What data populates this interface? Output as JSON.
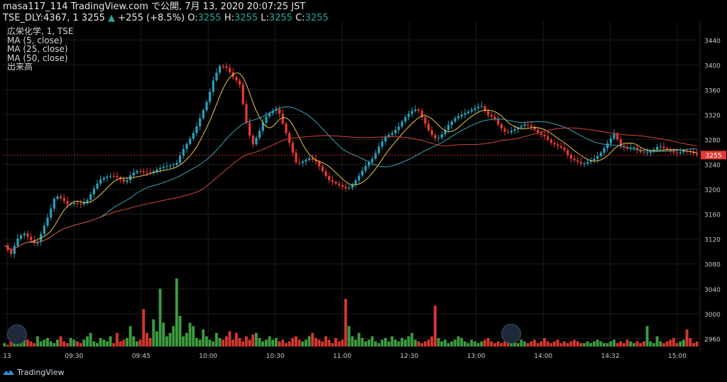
{
  "header": {
    "line1": "masa117_114 TradingView.com で公開, 7月 13, 2020 20:07:25 JST",
    "symbol": "TSE_DLY:4367, 1",
    "price": "3255",
    "change_arrow": "▲",
    "change": "+255 (+8.5%)",
    "o_label": "O:",
    "o_val": "3255",
    "h_label": "H:",
    "h_val": "3255",
    "l_label": "L:",
    "l_val": "3255",
    "c_label": "C:",
    "c_val": "3255"
  },
  "legend": {
    "title": "広栄化学, 1, TSE",
    "ma5": "MA (5, close)",
    "ma25": "MA (25, close)",
    "ma50": "MA (50, close)",
    "volume": "出来高"
  },
  "footer": {
    "brand": "TradingView"
  },
  "colors": {
    "up": "#26a0b8",
    "down": "#e53935",
    "vol_up": "#3d9b3f",
    "vol_down": "#d5372f",
    "ma5": "#e9c64b",
    "ma25": "#36a4b7",
    "ma50": "#d3443a",
    "grid": "#1c1c1c",
    "price_line": "#e53935",
    "axis_text": "#c8c8c8",
    "price_tag_bg": "#e53935"
  },
  "chart_data": {
    "type": "candlestick",
    "price_axis_ticks": [
      2960,
      3000,
      3040,
      3080,
      3120,
      3160,
      3200,
      3240,
      3280,
      3320,
      3360,
      3400,
      3440
    ],
    "ylim": [
      2945,
      3470
    ],
    "time_ticks": [
      "13",
      "09:30",
      "09:45",
      "10:00",
      "10:30",
      "11:00",
      "12:30",
      "13:00",
      "14:00",
      "14:32",
      "15:00"
    ],
    "current_price": 3255,
    "grid": true,
    "price_path": [
      [
        0,
        3110
      ],
      [
        2,
        3095
      ],
      [
        4,
        3120
      ],
      [
        6,
        3130
      ],
      [
        8,
        3120
      ],
      [
        10,
        3110
      ],
      [
        12,
        3135
      ],
      [
        14,
        3160
      ],
      [
        16,
        3190
      ],
      [
        18,
        3185
      ],
      [
        20,
        3175
      ],
      [
        22,
        3178
      ],
      [
        24,
        3176
      ],
      [
        26,
        3182
      ],
      [
        28,
        3200
      ],
      [
        30,
        3215
      ],
      [
        32,
        3220
      ],
      [
        34,
        3222
      ],
      [
        36,
        3218
      ],
      [
        38,
        3210
      ],
      [
        40,
        3225
      ],
      [
        42,
        3230
      ],
      [
        44,
        3228
      ],
      [
        46,
        3226
      ],
      [
        48,
        3232
      ],
      [
        50,
        3236
      ],
      [
        52,
        3238
      ],
      [
        54,
        3240
      ],
      [
        56,
        3262
      ],
      [
        58,
        3278
      ],
      [
        60,
        3295
      ],
      [
        62,
        3320
      ],
      [
        64,
        3345
      ],
      [
        66,
        3380
      ],
      [
        68,
        3400
      ],
      [
        70,
        3395
      ],
      [
        72,
        3380
      ],
      [
        74,
        3370
      ],
      [
        76,
        3310
      ],
      [
        78,
        3270
      ],
      [
        80,
        3290
      ],
      [
        82,
        3315
      ],
      [
        84,
        3325
      ],
      [
        86,
        3330
      ],
      [
        88,
        3300
      ],
      [
        90,
        3270
      ],
      [
        92,
        3240
      ],
      [
        94,
        3245
      ],
      [
        96,
        3250
      ],
      [
        98,
        3245
      ],
      [
        100,
        3230
      ],
      [
        102,
        3215
      ],
      [
        104,
        3210
      ],
      [
        106,
        3205
      ],
      [
        108,
        3200
      ],
      [
        110,
        3210
      ],
      [
        112,
        3225
      ],
      [
        114,
        3240
      ],
      [
        116,
        3250
      ],
      [
        118,
        3270
      ],
      [
        120,
        3285
      ],
      [
        122,
        3290
      ],
      [
        124,
        3300
      ],
      [
        126,
        3315
      ],
      [
        128,
        3325
      ],
      [
        130,
        3330
      ],
      [
        132,
        3310
      ],
      [
        134,
        3290
      ],
      [
        136,
        3280
      ],
      [
        138,
        3290
      ],
      [
        140,
        3305
      ],
      [
        142,
        3315
      ],
      [
        144,
        3320
      ],
      [
        146,
        3325
      ],
      [
        148,
        3330
      ],
      [
        150,
        3335
      ],
      [
        152,
        3320
      ],
      [
        154,
        3315
      ],
      [
        156,
        3300
      ],
      [
        158,
        3290
      ],
      [
        160,
        3295
      ],
      [
        162,
        3300
      ],
      [
        164,
        3305
      ],
      [
        166,
        3300
      ],
      [
        168,
        3290
      ],
      [
        170,
        3285
      ],
      [
        172,
        3275
      ],
      [
        174,
        3270
      ],
      [
        176,
        3265
      ],
      [
        178,
        3250
      ],
      [
        180,
        3245
      ],
      [
        182,
        3240
      ],
      [
        184,
        3245
      ],
      [
        186,
        3250
      ],
      [
        188,
        3260
      ],
      [
        190,
        3275
      ],
      [
        192,
        3290
      ],
      [
        194,
        3270
      ],
      [
        196,
        3265
      ],
      [
        198,
        3268
      ],
      [
        200,
        3260
      ],
      [
        202,
        3258
      ],
      [
        204,
        3262
      ],
      [
        206,
        3270
      ],
      [
        208,
        3265
      ],
      [
        210,
        3260
      ],
      [
        212,
        3258
      ],
      [
        214,
        3262
      ],
      [
        216,
        3260
      ],
      [
        218,
        3255
      ]
    ],
    "x_range": [
      0,
      218
    ],
    "volume": [
      2,
      1,
      5,
      8,
      3,
      2,
      10,
      4,
      3,
      2,
      6,
      3,
      4,
      5,
      3,
      2,
      4,
      6,
      3,
      2,
      5,
      4,
      3,
      2,
      4,
      6,
      8,
      3,
      2,
      5,
      4,
      3,
      6,
      2,
      8,
      3,
      4,
      5,
      12,
      6,
      3,
      4,
      22,
      8,
      5,
      16,
      9,
      34,
      14,
      6,
      8,
      12,
      40,
      18,
      6,
      8,
      14,
      12,
      5,
      4,
      10,
      6,
      4,
      3,
      8,
      5,
      4,
      6,
      9,
      4,
      8,
      5,
      3,
      6,
      4,
      7,
      8,
      5,
      3,
      4,
      6,
      4,
      5,
      3,
      4,
      2,
      3,
      5,
      6,
      4,
      3,
      4,
      6,
      8,
      5,
      4,
      3,
      6,
      4,
      2,
      5,
      3,
      4,
      28,
      12,
      6,
      4,
      8,
      5,
      3,
      4,
      6,
      3,
      2,
      4,
      5,
      3,
      6,
      4,
      3,
      5,
      4,
      6,
      8,
      4,
      3,
      2,
      3,
      4,
      6,
      24,
      5,
      3,
      4,
      2,
      3,
      4,
      6,
      5,
      3,
      2,
      4,
      3,
      2,
      3,
      4,
      5,
      3,
      2,
      3,
      2,
      3,
      4,
      2,
      3,
      2,
      4,
      3,
      2,
      3,
      4,
      2,
      3,
      5,
      3,
      2,
      3,
      4,
      2,
      3,
      2,
      3,
      4,
      3,
      2,
      2,
      3,
      2,
      3,
      4,
      3,
      2,
      2,
      3,
      4,
      2,
      3,
      2,
      4,
      3,
      2,
      3,
      2,
      3,
      12,
      3,
      2,
      6,
      3,
      2,
      3,
      4,
      5,
      2,
      3,
      4,
      10,
      5,
      2,
      3
    ],
    "volume_max": 48
  }
}
